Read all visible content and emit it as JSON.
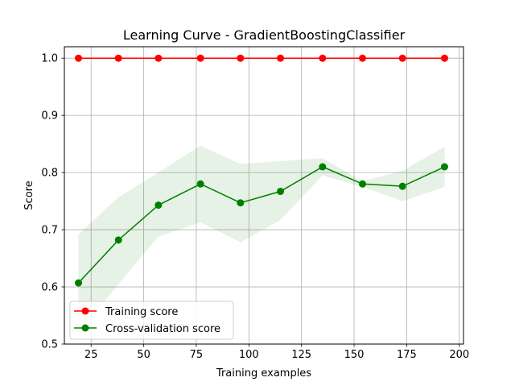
{
  "chart_data": {
    "type": "line",
    "title": "Learning Curve - GradientBoostingClassifier",
    "xlabel": "Training examples",
    "ylabel": "Score",
    "xlim": [
      12.3,
      202
    ],
    "ylim": [
      0.5,
      1.02
    ],
    "x_ticks": [
      25,
      50,
      75,
      100,
      125,
      150,
      175,
      200
    ],
    "y_ticks": [
      0.5,
      0.6,
      0.7,
      0.8,
      0.9,
      1.0
    ],
    "y_tick_labels": [
      "0.5",
      "0.6",
      "0.7",
      "0.8",
      "0.9",
      "1.0"
    ],
    "grid": true,
    "legend_location": "lower left",
    "x": [
      19,
      38,
      57,
      77,
      96,
      115,
      135,
      154,
      173,
      193
    ],
    "series": [
      {
        "name": "Training score",
        "color": "#ff0000",
        "values": [
          1.0,
          1.0,
          1.0,
          1.0,
          1.0,
          1.0,
          1.0,
          1.0,
          1.0,
          1.0
        ],
        "band_low": [
          1.0,
          1.0,
          1.0,
          1.0,
          1.0,
          1.0,
          1.0,
          1.0,
          1.0,
          1.0
        ],
        "band_high": [
          1.0,
          1.0,
          1.0,
          1.0,
          1.0,
          1.0,
          1.0,
          1.0,
          1.0,
          1.0
        ]
      },
      {
        "name": "Cross-validation score",
        "color": "#008000",
        "values": [
          0.607,
          0.682,
          0.743,
          0.78,
          0.747,
          0.767,
          0.81,
          0.78,
          0.776,
          0.81
        ],
        "band_low": [
          0.52,
          0.605,
          0.688,
          0.713,
          0.678,
          0.717,
          0.795,
          0.775,
          0.75,
          0.775
        ],
        "band_high": [
          0.692,
          0.757,
          0.8,
          0.847,
          0.815,
          0.82,
          0.825,
          0.785,
          0.803,
          0.845
        ]
      }
    ]
  }
}
